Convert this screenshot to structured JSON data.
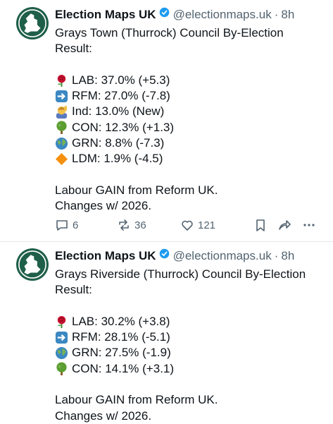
{
  "tweets": [
    {
      "author": "Election Maps UK",
      "handle": "@electionmaps.uk",
      "separator": "·",
      "time": "8h",
      "title_lines": [
        "Grays Town (Thurrock) Council By-Election",
        "Result:"
      ],
      "results": [
        "LAB: 37.0% (+5.3)",
        "RFM: 27.0% (-7.8)",
        "Ind: 13.0% (New)",
        "CON: 12.3% (+1.3)",
        "GRN: 8.8% (-7.3)",
        "LDM: 1.9% (-4.5)"
      ],
      "footer_lines": [
        "Labour GAIN from Reform UK.",
        "Changes w/ 2026."
      ],
      "replies": 6,
      "reposts": 36,
      "likes": 121
    },
    {
      "author": "Election Maps UK",
      "handle": "@electionmaps.uk",
      "separator": "·",
      "time": "8h",
      "title_lines": [
        "Grays Riverside (Thurrock) Council By-Election",
        "Result:"
      ],
      "results": [
        "LAB: 30.2% (+3.8)",
        "RFM: 28.1% (-5.1)",
        "GRN: 27.5% (-1.9)",
        "CON: 14.1% (+3.1)"
      ],
      "footer_lines": [
        "Labour GAIN from Reform UK.",
        "Changes w/ 2026."
      ]
    }
  ]
}
